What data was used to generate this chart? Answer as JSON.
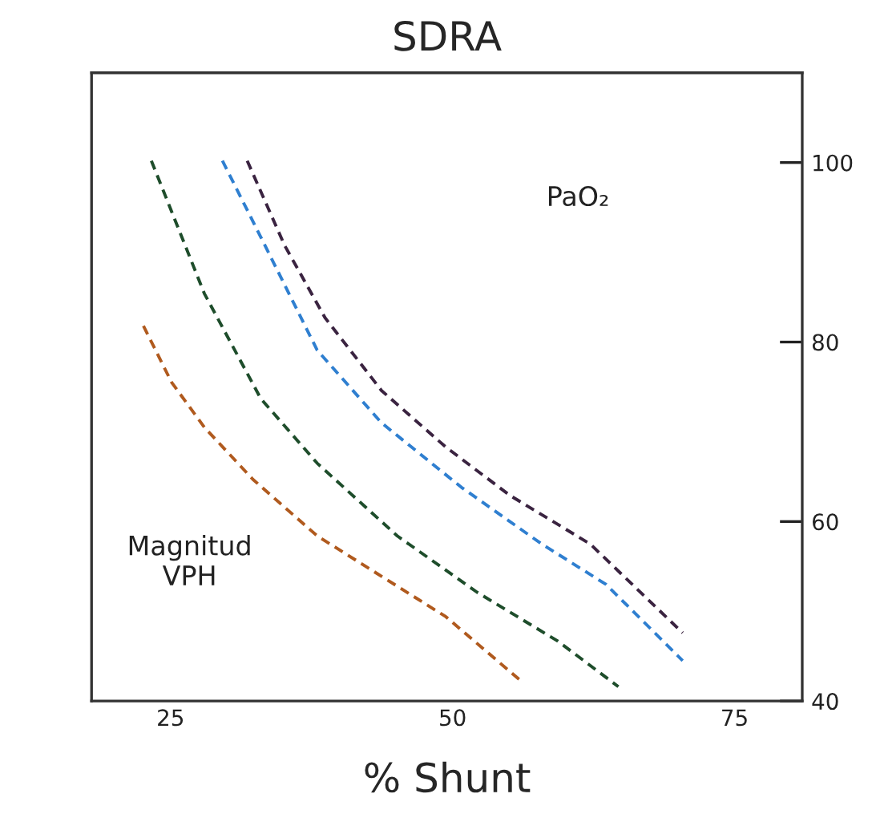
{
  "chart_data": {
    "type": "line",
    "title": "SDRA",
    "xlabel": "% Shunt",
    "annotations": [
      "Magnitud\nVPH",
      "PaO₂"
    ],
    "series": [
      {
        "color": "#b05a1e",
        "x": [
          22.6,
          25.1,
          28,
          32.3,
          38,
          43.7,
          49.4,
          56.1
        ],
        "values": [
          81.8,
          75.5,
          70.5,
          64.7,
          58.4,
          53.9,
          49.4,
          42.2
        ]
      },
      {
        "color": "#1e4d2b",
        "x": [
          23.3,
          28,
          33,
          38,
          45.1,
          52.2,
          59.3,
          64.7
        ],
        "values": [
          100.2,
          85.4,
          73.7,
          66.5,
          58.4,
          52.1,
          46.7,
          41.6
        ]
      },
      {
        "color": "#2f7fd0",
        "x": [
          29.6,
          33,
          38,
          43.7,
          50.8,
          57.9,
          63.6,
          70.4
        ],
        "values": [
          100.2,
          91.7,
          79.1,
          71,
          63.8,
          57.5,
          53,
          44.5
        ]
      },
      {
        "color": "#3a2340",
        "x": [
          31.8,
          35.1,
          38.7,
          43.7,
          49.4,
          55.1,
          62.2,
          70.4
        ],
        "values": [
          100.2,
          90.8,
          82.7,
          74.6,
          68.3,
          62.9,
          57.5,
          47.6
        ]
      }
    ],
    "xlim": [
      18,
      81
    ],
    "xticks": [
      25,
      50,
      75
    ],
    "ylim": [
      40,
      110
    ],
    "yticks": [
      40,
      60,
      80,
      100
    ],
    "grid": false,
    "legend": false,
    "line_style": "dashed",
    "marker": "none"
  }
}
